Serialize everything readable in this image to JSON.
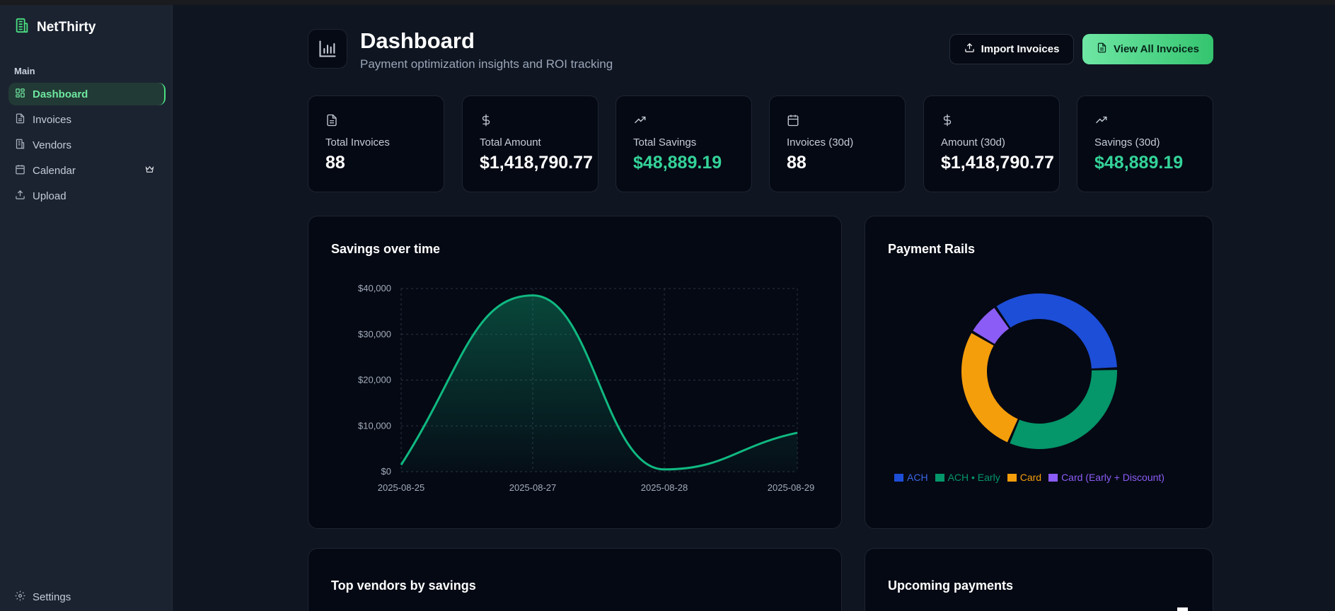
{
  "app": {
    "name": "NetThirty"
  },
  "sidebar": {
    "section": "Main",
    "items": [
      {
        "label": "Dashboard",
        "icon": "grid-icon",
        "active": true
      },
      {
        "label": "Invoices",
        "icon": "file-icon"
      },
      {
        "label": "Vendors",
        "icon": "building-icon"
      },
      {
        "label": "Calendar",
        "icon": "calendar-icon",
        "badge_icon": "crown-icon"
      },
      {
        "label": "Upload",
        "icon": "upload-icon"
      }
    ],
    "settings_label": "Settings"
  },
  "header": {
    "title": "Dashboard",
    "subtitle": "Payment optimization insights and ROI tracking",
    "import_label": "Import Invoices",
    "view_all_label": "View All Invoices"
  },
  "stats": [
    {
      "label": "Total Invoices",
      "value": "88",
      "icon": "file-icon"
    },
    {
      "label": "Total Amount",
      "value": "$1,418,790.77",
      "icon": "dollar-icon"
    },
    {
      "label": "Total Savings",
      "value": "$48,889.19",
      "icon": "trend-up-icon",
      "highlight": true
    },
    {
      "label": "Invoices (30d)",
      "value": "88",
      "icon": "calendar-icon"
    },
    {
      "label": "Amount (30d)",
      "value": "$1,418,790.77",
      "icon": "dollar-icon"
    },
    {
      "label": "Savings (30d)",
      "value": "$48,889.19",
      "icon": "trend-up-icon",
      "highlight": true
    }
  ],
  "savings_card": {
    "title": "Savings over time"
  },
  "rails_card": {
    "title": "Payment Rails"
  },
  "vendors_card": {
    "title": "Top vendors by savings"
  },
  "upcoming_card": {
    "title": "Upcoming payments"
  },
  "chart_data": [
    {
      "type": "area",
      "title": "Savings over time",
      "x": [
        "2025-08-25",
        "2025-08-27",
        "2025-08-28",
        "2025-08-29"
      ],
      "y": [
        1500,
        38500,
        500,
        8500
      ],
      "y_ticks": [
        "$0",
        "$10,000",
        "$20,000",
        "$30,000",
        "$40,000"
      ],
      "ylim": [
        0,
        40000
      ],
      "grid": true,
      "color": "#10b981"
    },
    {
      "type": "pie",
      "title": "Payment Rails",
      "labels": [
        "ACH",
        "ACH • Early",
        "Card",
        "Card (Early + Discount)"
      ],
      "values": [
        34,
        32,
        27,
        7
      ],
      "colors": [
        "#1d4ed8",
        "#059669",
        "#f59e0b",
        "#8b5cf6"
      ],
      "legend": "bottom"
    }
  ]
}
